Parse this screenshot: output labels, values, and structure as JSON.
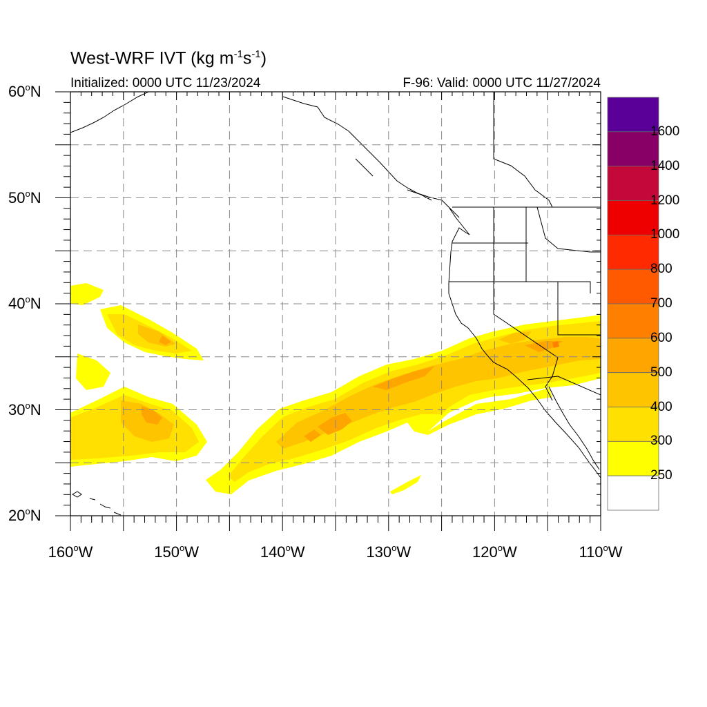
{
  "title": {
    "text": "West-WRF IVT (kg m",
    "exp1": "-1",
    "mid": "s",
    "exp2": "-1",
    "close": ")"
  },
  "subtitle_left": "Initialized: 0000 UTC 11/23/2024",
  "subtitle_right": "F-96: Valid: 0000 UTC 11/27/2024",
  "map": {
    "lat_range": [
      20,
      60
    ],
    "lon_range": [
      -160,
      -110
    ],
    "lat_ticks": [
      {
        "value": 60,
        "num": "60",
        "unit": "o",
        "hemi": "N"
      },
      {
        "value": 50,
        "num": "50",
        "unit": "o",
        "hemi": "N"
      },
      {
        "value": 40,
        "num": "40",
        "unit": "o",
        "hemi": "N"
      },
      {
        "value": 30,
        "num": "30",
        "unit": "o",
        "hemi": "N"
      },
      {
        "value": 20,
        "num": "20",
        "unit": "o",
        "hemi": "N"
      }
    ],
    "lon_ticks": [
      {
        "value": -160,
        "num": "160",
        "unit": "o",
        "hemi": "W"
      },
      {
        "value": -150,
        "num": "150",
        "unit": "o",
        "hemi": "W"
      },
      {
        "value": -140,
        "num": "140",
        "unit": "o",
        "hemi": "W"
      },
      {
        "value": -130,
        "num": "130",
        "unit": "o",
        "hemi": "W"
      },
      {
        "value": -120,
        "num": "120",
        "unit": "o",
        "hemi": "W"
      },
      {
        "value": -110,
        "num": "110",
        "unit": "o",
        "hemi": "W"
      }
    ],
    "grid": "dashed, every 5 degrees"
  },
  "colorbar": {
    "labels": [
      "1600",
      "1400",
      "1200",
      "1000",
      "800",
      "700",
      "600",
      "500",
      "400",
      "300",
      "250"
    ],
    "colors": [
      "#5a0099",
      "#880066",
      "#c4083a",
      "#ee0000",
      "#ff2a00",
      "#ff5a00",
      "#ff8000",
      "#ffa500",
      "#ffc400",
      "#ffe000",
      "#ffff00",
      "#ffffff"
    ]
  },
  "chart_data": {
    "type": "heatmap",
    "variable": "IVT",
    "units": "kg m-1 s-1",
    "levels": [
      250,
      300,
      400,
      500,
      600,
      700,
      800,
      1000,
      1200,
      1400,
      1600
    ],
    "features": [
      {
        "region": "atmospheric river, 24N 146W to 37N 110W",
        "max_level": 500
      },
      {
        "region": "patch near 26-32N 160-148W",
        "max_level": 400
      },
      {
        "region": "patch near 35-39N 156-149W",
        "max_level": 400
      },
      {
        "region": "band near 36-39N 124-110W",
        "max_level": 600
      }
    ]
  }
}
